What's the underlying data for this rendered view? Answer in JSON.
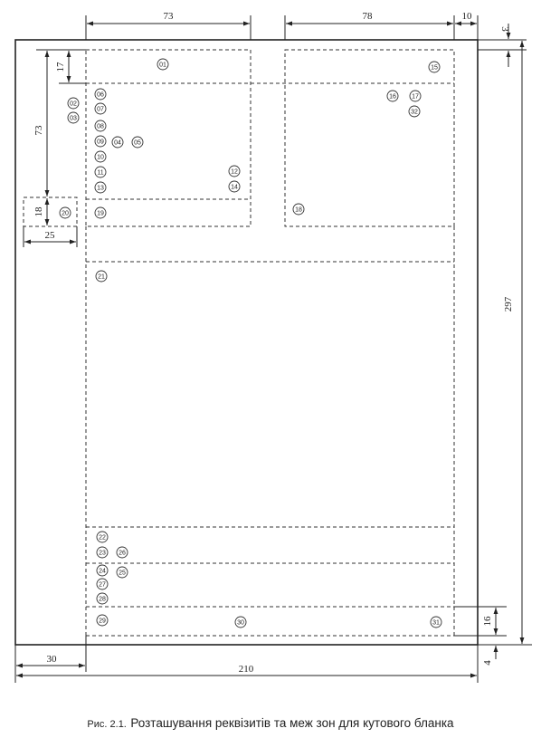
{
  "dimensions": {
    "top_left_width": "73",
    "top_right_width": "78",
    "right_margin": "10",
    "top_offset": "3",
    "header_height": "17",
    "block_height": "73",
    "stamp_height": "18",
    "stamp_width": "25",
    "page_height": "297",
    "left_margin": "30",
    "page_width": "210",
    "bottom_zone_height": "16",
    "bottom_margin": "4"
  },
  "requisites": [
    "01",
    "02",
    "03",
    "04",
    "05",
    "06",
    "07",
    "08",
    "09",
    "10",
    "11",
    "12",
    "13",
    "14",
    "15",
    "16",
    "17",
    "18",
    "19",
    "20",
    "21",
    "22",
    "23",
    "24",
    "25",
    "26",
    "27",
    "28",
    "29",
    "30",
    "31",
    "32"
  ],
  "caption": {
    "label": "Рис. 2.1.",
    "text": "Розташування реквізитів та меж зон для кутового бланка"
  }
}
